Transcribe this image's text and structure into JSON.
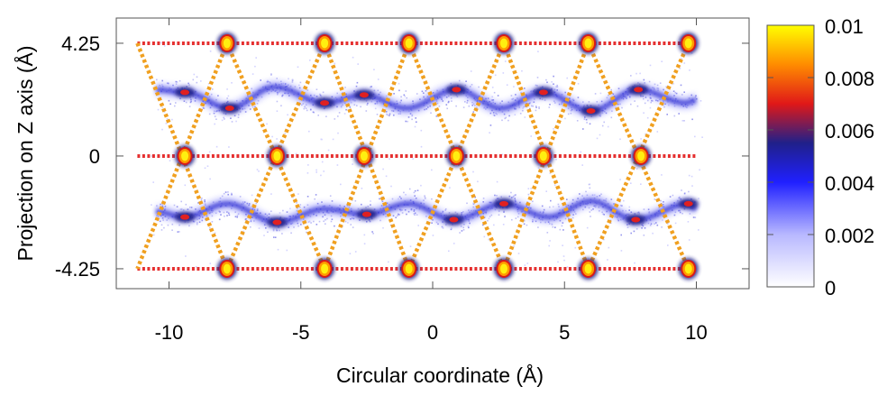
{
  "chart_data": {
    "type": "heatmap",
    "xlabel": "Circular coordinate (Å)",
    "ylabel": "Projection on Z axis (Å)",
    "xlim": [
      -12,
      12
    ],
    "ylim": [
      -5,
      5.2
    ],
    "x_ticks": [
      -10,
      -5,
      0,
      5,
      10
    ],
    "y_ticks": [
      4.25,
      0,
      -4.25
    ],
    "x_tick_labels": [
      "-10",
      "-5",
      "0",
      "5",
      "10"
    ],
    "y_tick_labels": [
      "4.25",
      "0",
      "-4.25"
    ],
    "colorbar": {
      "range": [
        0,
        0.01
      ],
      "ticks": [
        0,
        0.002,
        0.004,
        0.006,
        0.008,
        0.01
      ],
      "tick_labels": [
        "0",
        "0.002",
        "0.004",
        "0.006",
        "0.008",
        "0.01"
      ],
      "colormap": [
        "#ffffff",
        "#3030ff",
        "#1a1a90",
        "#e01818",
        "#ff9a00",
        "#ffff00"
      ]
    },
    "reference_lines": {
      "horizontal": {
        "y_values": [
          4.25,
          0,
          -4.25
        ],
        "x_range": [
          -11.2,
          10
        ],
        "color": "#e53030",
        "style": "dotted"
      },
      "diagonal": {
        "color": "#f0a020",
        "style": "dotted",
        "segments": [
          [
            [
              -11.2,
              4.25
            ],
            [
              -7.8,
              -4.25
            ]
          ],
          [
            [
              -7.8,
              4.25
            ],
            [
              -11.2,
              -4.25
            ]
          ],
          [
            [
              -7.8,
              4.25
            ],
            [
              -4.1,
              -4.25
            ]
          ],
          [
            [
              -4.1,
              4.25
            ],
            [
              -7.8,
              -4.25
            ]
          ],
          [
            [
              -4.1,
              4.25
            ],
            [
              -0.9,
              -4.25
            ]
          ],
          [
            [
              -0.9,
              4.25
            ],
            [
              -4.1,
              -4.25
            ]
          ],
          [
            [
              -0.9,
              4.25
            ],
            [
              2.7,
              -4.25
            ]
          ],
          [
            [
              2.7,
              4.25
            ],
            [
              -0.9,
              -4.25
            ]
          ],
          [
            [
              2.7,
              4.25
            ],
            [
              5.9,
              -4.25
            ]
          ],
          [
            [
              5.9,
              4.25
            ],
            [
              2.7,
              -4.25
            ]
          ],
          [
            [
              5.9,
              4.25
            ],
            [
              9.7,
              -4.25
            ]
          ],
          [
            [
              9.7,
              4.25
            ],
            [
              5.9,
              -4.25
            ]
          ]
        ]
      }
    },
    "hotspots": [
      {
        "x": -7.8,
        "y": 4.25,
        "v": 0.0095
      },
      {
        "x": -4.1,
        "y": 4.25,
        "v": 0.0095
      },
      {
        "x": -0.9,
        "y": 4.25,
        "v": 0.0095
      },
      {
        "x": 2.7,
        "y": 4.25,
        "v": 0.0095
      },
      {
        "x": 5.9,
        "y": 4.25,
        "v": 0.0095
      },
      {
        "x": 9.7,
        "y": 4.25,
        "v": 0.009
      },
      {
        "x": -9.4,
        "y": 0,
        "v": 0.0095
      },
      {
        "x": -5.9,
        "y": 0,
        "v": 0.0095
      },
      {
        "x": -2.6,
        "y": 0,
        "v": 0.0095
      },
      {
        "x": 0.9,
        "y": 0,
        "v": 0.0095
      },
      {
        "x": 4.2,
        "y": 0,
        "v": 0.0095
      },
      {
        "x": 7.9,
        "y": 0,
        "v": 0.0095
      },
      {
        "x": -7.8,
        "y": -4.25,
        "v": 0.0095
      },
      {
        "x": -4.1,
        "y": -4.25,
        "v": 0.0095
      },
      {
        "x": -0.9,
        "y": -4.25,
        "v": 0.0095
      },
      {
        "x": 2.7,
        "y": -4.25,
        "v": 0.0095
      },
      {
        "x": 5.9,
        "y": -4.25,
        "v": 0.0095
      },
      {
        "x": 9.7,
        "y": -4.25,
        "v": 0.0095
      }
    ],
    "bands": [
      {
        "x": [
          -10.5,
          -9.4,
          -7.7,
          -6.0,
          -4.1,
          -2.6,
          -1.0,
          0.9,
          2.6,
          4.2,
          6.0,
          7.8,
          9.6,
          10.0
        ],
        "y": [
          2.5,
          2.4,
          1.8,
          2.6,
          2.0,
          2.3,
          1.8,
          2.5,
          1.8,
          2.4,
          1.7,
          2.5,
          2.0,
          2.1
        ],
        "v": 0.005
      },
      {
        "x": [
          -10.5,
          -9.4,
          -7.8,
          -5.9,
          -4.1,
          -2.5,
          -0.9,
          0.8,
          2.7,
          4.4,
          6.0,
          7.7,
          9.7,
          10.0
        ],
        "y": [
          -2.1,
          -2.3,
          -1.8,
          -2.5,
          -2.0,
          -2.2,
          -1.8,
          -2.4,
          -1.8,
          -2.3,
          -1.7,
          -2.4,
          -1.8,
          -2.0
        ],
        "v": 0.005
      }
    ],
    "band_peaks": [
      {
        "x": -9.4,
        "y": 2.4
      },
      {
        "x": -7.7,
        "y": 1.8
      },
      {
        "x": -4.1,
        "y": 2.0
      },
      {
        "x": -2.6,
        "y": 2.3
      },
      {
        "x": 0.9,
        "y": 2.5
      },
      {
        "x": 4.2,
        "y": 2.4
      },
      {
        "x": 6.0,
        "y": 1.7
      },
      {
        "x": 7.8,
        "y": 2.5
      },
      {
        "x": -9.4,
        "y": -2.3
      },
      {
        "x": -5.9,
        "y": -2.5
      },
      {
        "x": -2.5,
        "y": -2.2
      },
      {
        "x": 0.8,
        "y": -2.4
      },
      {
        "x": 2.7,
        "y": -1.8
      },
      {
        "x": 7.7,
        "y": -2.4
      },
      {
        "x": 9.7,
        "y": -1.8
      }
    ]
  }
}
